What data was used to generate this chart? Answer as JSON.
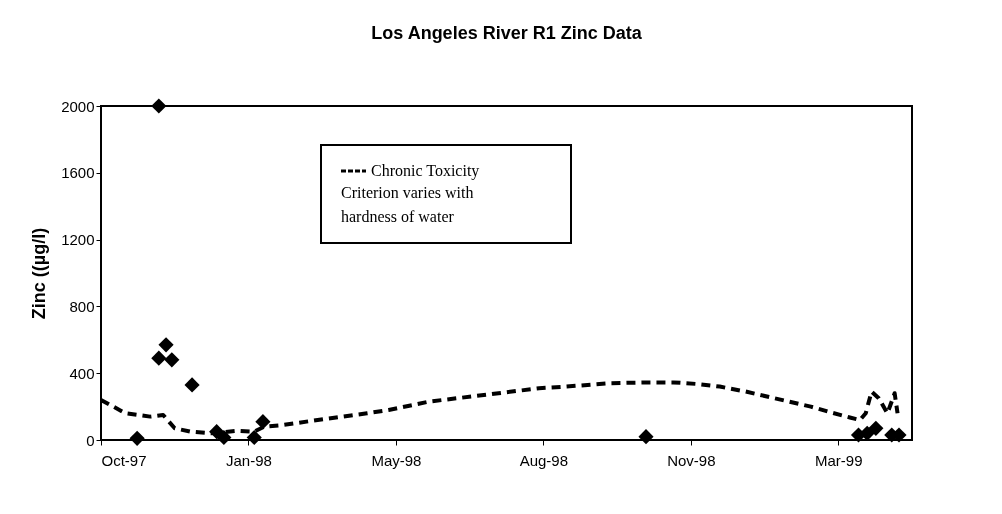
{
  "chart_data": {
    "type": "scatter",
    "title": "Los Angeles River R1 Zinc Data",
    "ylabel": "Zinc ((µg/l)",
    "xlim": [
      "1997-10-10",
      "1999-04-24"
    ],
    "xticks": [
      {
        "value": "1997-10-10",
        "label": "Oct-97"
      },
      {
        "value": "1998-01-20",
        "label": "Jan-98"
      },
      {
        "value": "1998-05-02",
        "label": "May-98"
      },
      {
        "value": "1998-08-12",
        "label": "Aug-98"
      },
      {
        "value": "1998-11-22",
        "label": "Nov-98"
      },
      {
        "value": "1999-03-04",
        "label": "Mar-99"
      }
    ],
    "ylim": [
      0,
      2000
    ],
    "yticks": [
      0,
      400,
      800,
      1200,
      1600,
      2000
    ],
    "grid": false,
    "legend": "top",
    "series": [
      {
        "type": "line",
        "name": "Chronic Toxicity Criterion varies with hardness of water",
        "color": "#000000",
        "line_style": "dashed",
        "marker": "none",
        "x": [
          "1997-10-10",
          "1997-10-27",
          "1997-11-13",
          "1997-11-22",
          "1997-11-30",
          "1997-12-11",
          "1997-12-25",
          "1998-01-12",
          "1998-01-24",
          "1998-01-31",
          "1998-02-13",
          "1998-03-13",
          "1998-04-12",
          "1998-04-27",
          "1998-05-25",
          "1998-07-12",
          "1998-08-09",
          "1998-08-28",
          "1998-09-27",
          "1998-10-23",
          "1998-11-10",
          "1998-11-27",
          "1998-12-12",
          "1998-12-30",
          "1999-01-29",
          "1999-02-13",
          "1999-02-27",
          "1999-03-12",
          "1999-03-19",
          "1999-03-23",
          "1999-03-27",
          "1999-04-01",
          "1999-04-07",
          "1999-04-12",
          "1999-04-14"
        ],
        "values": [
          240,
          160,
          140,
          150,
          70,
          50,
          40,
          55,
          50,
          80,
          90,
          125,
          160,
          180,
          230,
          280,
          310,
          320,
          340,
          345,
          345,
          335,
          320,
          290,
          230,
          200,
          165,
          135,
          120,
          160,
          290,
          250,
          160,
          280,
          160
        ]
      },
      {
        "color": "#000000",
        "marker": "diamond",
        "x": [
          "1997-11-04",
          "1997-11-19",
          "1997-11-19",
          "1997-11-24",
          "1997-11-28",
          "1997-12-12",
          "1997-12-29",
          "1998-01-03",
          "1998-01-24",
          "1998-01-30",
          "1998-10-22",
          "1999-03-18",
          "1999-03-24",
          "1999-03-30",
          "1999-04-10",
          "1999-04-15"
        ],
        "values": [
          10,
          2000,
          490,
          570,
          480,
          330,
          50,
          15,
          15,
          110,
          20,
          30,
          40,
          70,
          30,
          30
        ]
      }
    ]
  }
}
